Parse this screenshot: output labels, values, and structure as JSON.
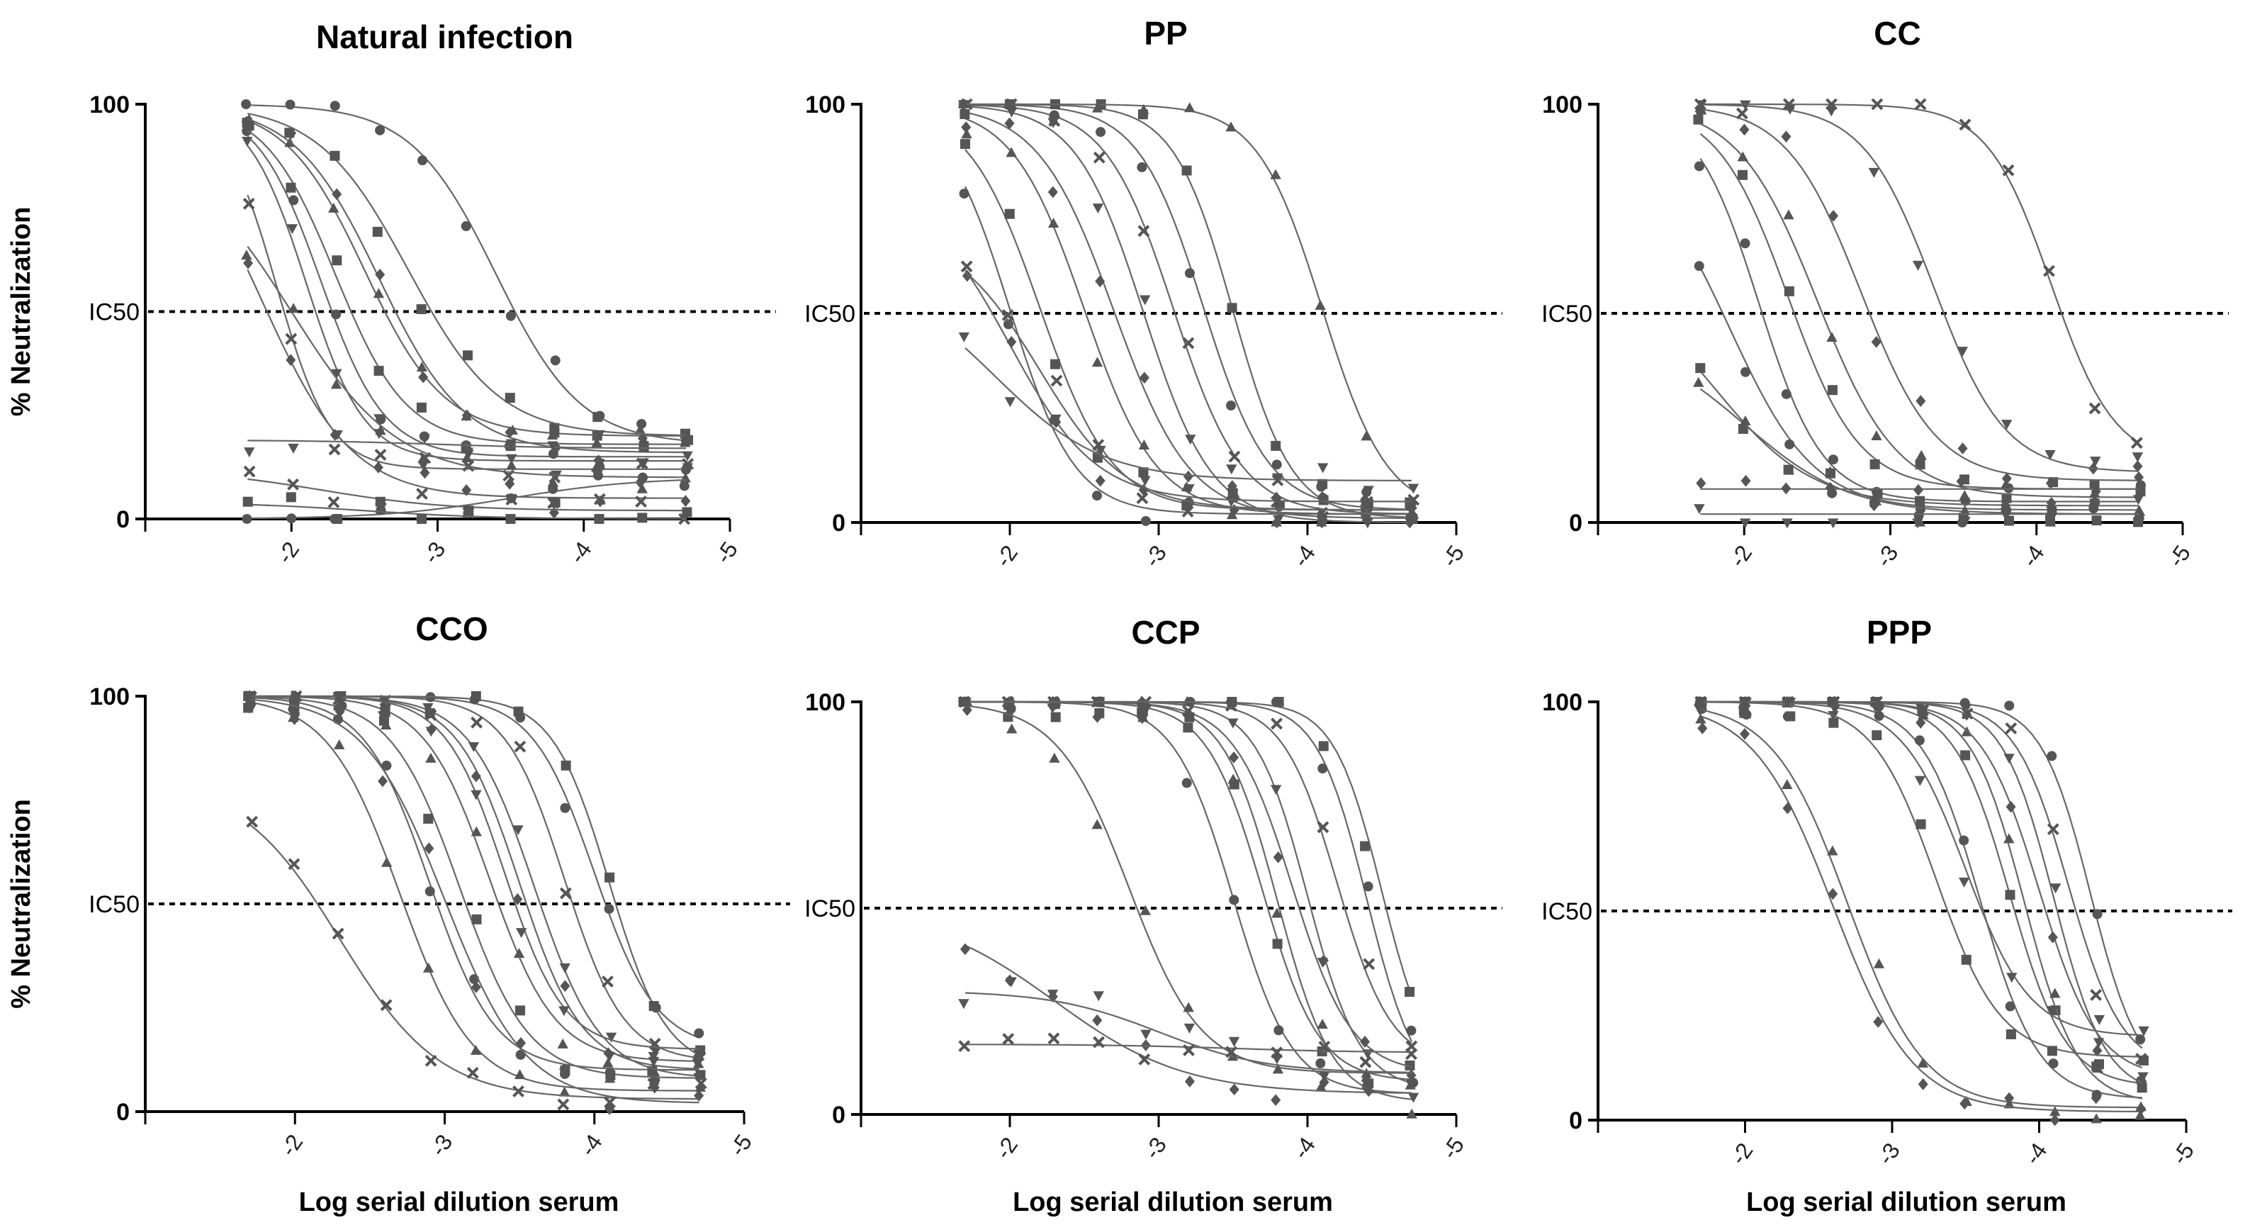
{
  "figure": {
    "y_axis_label": "% Neutralization",
    "x_axis_label": "Log serial dilution serum",
    "reference_label": "IC50",
    "marker_color": "#555555",
    "curve_color": "#666666",
    "axis_color": "#000000"
  },
  "chart_data": [
    {
      "type": "scatter",
      "title": "Natural infection",
      "xlabel": "",
      "ylabel": "% Neutralization",
      "xlim": [
        -1,
        -5
      ],
      "ylim": [
        0,
        100
      ],
      "xticks": [
        "-2",
        "-3",
        "-4",
        "-5"
      ],
      "yticks": [
        "0",
        "100"
      ],
      "reference_line": {
        "y": 50,
        "label": "IC50",
        "style": "dotted"
      },
      "x": [
        -1.7,
        -2.0,
        -2.3,
        -2.6,
        -2.9,
        -3.2,
        -3.5,
        -3.8,
        -4.1,
        -4.4,
        -4.7
      ],
      "curve_model": "four-parameter logistic (top, bottom, logIC50, slope)",
      "series": [
        {
          "name": "s1",
          "top": 100,
          "bottom": 15,
          "ic50": -2.2,
          "slope": 2.0
        },
        {
          "name": "s2",
          "top": 100,
          "bottom": 18,
          "ic50": -2.3,
          "slope": 1.8
        },
        {
          "name": "s3",
          "top": 100,
          "bottom": 20,
          "ic50": -2.5,
          "slope": 1.6
        },
        {
          "name": "s4",
          "top": 100,
          "bottom": 16,
          "ic50": -2.6,
          "slope": 1.5
        },
        {
          "name": "s5",
          "top": 100,
          "bottom": 14,
          "ic50": -2.1,
          "slope": 2.2
        },
        {
          "name": "s6",
          "top": 100,
          "bottom": 12,
          "ic50": -1.9,
          "slope": 2.4
        },
        {
          "name": "s7",
          "top": 100,
          "bottom": 18,
          "ic50": -3.4,
          "slope": 1.5
        },
        {
          "name": "s8",
          "top": 100,
          "bottom": 20,
          "ic50": -2.8,
          "slope": 1.4
        },
        {
          "name": "s9",
          "top": 90,
          "bottom": 10,
          "ic50": -2.0,
          "slope": 1.2
        },
        {
          "name": "s10",
          "top": 100,
          "bottom": 5,
          "ic50": -1.8,
          "slope": 1.4
        },
        {
          "name": "s11",
          "top": 19,
          "bottom": 17,
          "ic50": -3.0,
          "slope": 1.0
        },
        {
          "name": "s12",
          "top": 12,
          "bottom": 2,
          "ic50": -2.2,
          "slope": 1.0
        },
        {
          "name": "s13",
          "top": 0,
          "bottom": 10,
          "ic50": -3.5,
          "slope": 1.0
        },
        {
          "name": "s14",
          "top": 4,
          "bottom": 0,
          "ic50": -2.5,
          "slope": 1.0
        }
      ]
    },
    {
      "type": "scatter",
      "title": "PP",
      "xlabel": "",
      "ylabel": "",
      "xlim": [
        -1,
        -5
      ],
      "ylim": [
        0,
        100
      ],
      "xticks": [
        "-2",
        "-3",
        "-4",
        "-5"
      ],
      "yticks": [
        "0",
        "100"
      ],
      "reference_line": {
        "y": 50,
        "label": "IC50",
        "style": "dotted"
      },
      "x": [
        -1.7,
        -2.0,
        -2.3,
        -2.6,
        -2.9,
        -3.2,
        -3.5,
        -3.8,
        -4.1,
        -4.4,
        -4.7
      ],
      "curve_model": "four-parameter logistic (top, bottom, logIC50, slope)",
      "series": [
        {
          "name": "s1",
          "top": 100,
          "bottom": 2,
          "ic50": -2.0,
          "slope": 2.0
        },
        {
          "name": "s2",
          "top": 100,
          "bottom": 3,
          "ic50": -2.2,
          "slope": 1.8
        },
        {
          "name": "s3",
          "top": 100,
          "bottom": 2,
          "ic50": -2.5,
          "slope": 1.8
        },
        {
          "name": "s4",
          "top": 100,
          "bottom": 1,
          "ic50": -2.7,
          "slope": 1.7
        },
        {
          "name": "s5",
          "top": 100,
          "bottom": 0,
          "ic50": -2.9,
          "slope": 1.9
        },
        {
          "name": "s6",
          "top": 100,
          "bottom": 2,
          "ic50": -3.1,
          "slope": 1.9
        },
        {
          "name": "s7",
          "top": 100,
          "bottom": 3,
          "ic50": -3.3,
          "slope": 2.0
        },
        {
          "name": "s8",
          "top": 100,
          "bottom": 1,
          "ic50": -3.5,
          "slope": 2.2
        },
        {
          "name": "s9",
          "top": 100,
          "bottom": 2,
          "ic50": -4.1,
          "slope": 2.0
        },
        {
          "name": "s10",
          "top": 80,
          "bottom": 5,
          "ic50": -2.0,
          "slope": 1.5
        },
        {
          "name": "s11",
          "top": 60,
          "bottom": 10,
          "ic50": -1.9,
          "slope": 1.2
        },
        {
          "name": "s12",
          "top": 70,
          "bottom": 3,
          "ic50": -2.2,
          "slope": 1.5
        }
      ]
    },
    {
      "type": "scatter",
      "title": "CC",
      "xlabel": "",
      "ylabel": "",
      "xlim": [
        -1,
        -5
      ],
      "ylim": [
        0,
        100
      ],
      "xticks": [
        "-2",
        "-3",
        "-4",
        "-5"
      ],
      "yticks": [
        "0",
        "100"
      ],
      "reference_line": {
        "y": 50,
        "label": "IC50",
        "style": "dotted"
      },
      "x": [
        -1.7,
        -2.0,
        -2.3,
        -2.6,
        -2.9,
        -3.2,
        -3.5,
        -3.8,
        -4.1,
        -4.4,
        -4.7
      ],
      "curve_model": "four-parameter logistic (top, bottom, logIC50, slope)",
      "series": [
        {
          "name": "s1",
          "top": 100,
          "bottom": 5,
          "ic50": -2.1,
          "slope": 2.0
        },
        {
          "name": "s2",
          "top": 100,
          "bottom": 8,
          "ic50": -2.3,
          "slope": 1.8
        },
        {
          "name": "s3",
          "top": 100,
          "bottom": 6,
          "ic50": -2.5,
          "slope": 1.6
        },
        {
          "name": "s4",
          "top": 100,
          "bottom": 10,
          "ic50": -2.8,
          "slope": 1.7
        },
        {
          "name": "s5",
          "top": 100,
          "bottom": 12,
          "ic50": -3.3,
          "slope": 1.8
        },
        {
          "name": "s6",
          "top": 100,
          "bottom": 14,
          "ic50": -4.1,
          "slope": 2.0
        },
        {
          "name": "s7",
          "top": 90,
          "bottom": 3,
          "ic50": -1.9,
          "slope": 1.5
        },
        {
          "name": "s8",
          "top": 60,
          "bottom": 4,
          "ic50": -1.8,
          "slope": 1.3
        },
        {
          "name": "s9",
          "top": 45,
          "bottom": 2,
          "ic50": -2.0,
          "slope": 1.2
        },
        {
          "name": "s10",
          "top": 8,
          "bottom": 8,
          "ic50": -3.0,
          "slope": 1.0
        },
        {
          "name": "s11",
          "top": 2,
          "bottom": 2,
          "ic50": -3.0,
          "slope": 1.0
        }
      ]
    },
    {
      "type": "scatter",
      "title": "CCO",
      "xlabel": "Log serial dilution serum",
      "ylabel": "% Neutralization",
      "xlim": [
        -1,
        -5
      ],
      "ylim": [
        0,
        100
      ],
      "xticks": [
        "-2",
        "-3",
        "-4",
        "-5"
      ],
      "yticks": [
        "0",
        "100"
      ],
      "reference_line": {
        "y": 50,
        "label": "IC50",
        "style": "dotted"
      },
      "x": [
        -1.7,
        -2.0,
        -2.3,
        -2.6,
        -2.9,
        -3.2,
        -3.5,
        -3.8,
        -4.1,
        -4.4,
        -4.7
      ],
      "curve_model": "four-parameter logistic (top, bottom, logIC50, slope)",
      "series": [
        {
          "name": "s1",
          "top": 100,
          "bottom": 10,
          "ic50": -2.9,
          "slope": 2.0
        },
        {
          "name": "s2",
          "top": 100,
          "bottom": 8,
          "ic50": -3.1,
          "slope": 1.9
        },
        {
          "name": "s3",
          "top": 100,
          "bottom": 12,
          "ic50": -3.3,
          "slope": 2.0
        },
        {
          "name": "s4",
          "top": 100,
          "bottom": 10,
          "ic50": -3.5,
          "slope": 2.1
        },
        {
          "name": "s5",
          "top": 100,
          "bottom": 8,
          "ic50": -3.6,
          "slope": 2.0
        },
        {
          "name": "s6",
          "top": 100,
          "bottom": 12,
          "ic50": -3.8,
          "slope": 2.2
        },
        {
          "name": "s7",
          "top": 100,
          "bottom": 15,
          "ic50": -4.0,
          "slope": 2.1
        },
        {
          "name": "s8",
          "top": 100,
          "bottom": 10,
          "ic50": -4.1,
          "slope": 2.3
        },
        {
          "name": "s9",
          "top": 100,
          "bottom": 5,
          "ic50": -2.7,
          "slope": 1.8
        },
        {
          "name": "s10",
          "top": 100,
          "bottom": 2,
          "ic50": -3.0,
          "slope": 1.6
        },
        {
          "name": "s11",
          "top": 100,
          "bottom": 15,
          "ic50": -3.4,
          "slope": 2.2
        },
        {
          "name": "s12",
          "top": 80,
          "bottom": 3,
          "ic50": -2.3,
          "slope": 1.3
        }
      ]
    },
    {
      "type": "scatter",
      "title": "CCP",
      "xlabel": "Log serial dilution serum",
      "ylabel": "",
      "xlim": [
        -1,
        -5
      ],
      "ylim": [
        0,
        100
      ],
      "xticks": [
        "-2",
        "-3",
        "-4",
        "-5"
      ],
      "yticks": [
        "0",
        "100"
      ],
      "reference_line": {
        "y": 50,
        "label": "IC50",
        "style": "dotted"
      },
      "x": [
        -1.7,
        -2.0,
        -2.3,
        -2.6,
        -2.9,
        -3.2,
        -3.5,
        -3.8,
        -4.1,
        -4.4,
        -4.7
      ],
      "curve_model": "four-parameter logistic (top, bottom, logIC50, slope)",
      "series": [
        {
          "name": "s1",
          "top": 100,
          "bottom": 5,
          "ic50": -3.5,
          "slope": 2.2
        },
        {
          "name": "s2",
          "top": 100,
          "bottom": 8,
          "ic50": -3.7,
          "slope": 2.3
        },
        {
          "name": "s3",
          "top": 100,
          "bottom": 3,
          "ic50": -3.8,
          "slope": 2.4
        },
        {
          "name": "s4",
          "top": 100,
          "bottom": 10,
          "ic50": -3.9,
          "slope": 2.2
        },
        {
          "name": "s5",
          "top": 100,
          "bottom": 6,
          "ic50": -4.0,
          "slope": 2.5
        },
        {
          "name": "s6",
          "top": 100,
          "bottom": 12,
          "ic50": -4.2,
          "slope": 2.4
        },
        {
          "name": "s7",
          "top": 100,
          "bottom": 4,
          "ic50": -4.4,
          "slope": 2.6
        },
        {
          "name": "s8",
          "top": 100,
          "bottom": 8,
          "ic50": -4.5,
          "slope": 2.7
        },
        {
          "name": "s9",
          "top": 100,
          "bottom": 10,
          "ic50": -2.8,
          "slope": 1.8
        },
        {
          "name": "s10",
          "top": 50,
          "bottom": 5,
          "ic50": -2.3,
          "slope": 1.0
        },
        {
          "name": "s11",
          "top": 30,
          "bottom": 10,
          "ic50": -3.0,
          "slope": 1.2
        },
        {
          "name": "s12",
          "top": 17,
          "bottom": 15,
          "ic50": -3.5,
          "slope": 1.0
        }
      ]
    },
    {
      "type": "scatter",
      "title": "PPP",
      "xlabel": "Log serial dilution serum",
      "ylabel": "",
      "xlim": [
        -1,
        -5
      ],
      "ylim": [
        0,
        100
      ],
      "xticks": [
        "-2",
        "-3",
        "-4",
        "-5"
      ],
      "yticks": [
        "0",
        "100"
      ],
      "reference_line": {
        "y": 50,
        "label": "IC50",
        "style": "dotted"
      },
      "x": [
        -1.7,
        -2.0,
        -2.3,
        -2.6,
        -2.9,
        -3.2,
        -3.5,
        -3.8,
        -4.1,
        -4.4,
        -4.7
      ],
      "curve_model": "four-parameter logistic (top, bottom, logIC50, slope)",
      "series": [
        {
          "name": "s1",
          "top": 100,
          "bottom": 5,
          "ic50": -3.6,
          "slope": 2.2
        },
        {
          "name": "s2",
          "top": 100,
          "bottom": 8,
          "ic50": -3.8,
          "slope": 2.3
        },
        {
          "name": "s3",
          "top": 100,
          "bottom": 4,
          "ic50": -3.9,
          "slope": 2.4
        },
        {
          "name": "s4",
          "top": 100,
          "bottom": 10,
          "ic50": -4.0,
          "slope": 2.2
        },
        {
          "name": "s5",
          "top": 100,
          "bottom": 6,
          "ic50": -4.1,
          "slope": 2.5
        },
        {
          "name": "s6",
          "top": 100,
          "bottom": 12,
          "ic50": -4.2,
          "slope": 2.4
        },
        {
          "name": "s7",
          "top": 100,
          "bottom": 8,
          "ic50": -4.35,
          "slope": 2.6
        },
        {
          "name": "s8",
          "top": 100,
          "bottom": 15,
          "ic50": -3.3,
          "slope": 2.0
        },
        {
          "name": "s9",
          "top": 100,
          "bottom": 3,
          "ic50": -2.7,
          "slope": 1.7
        },
        {
          "name": "s10",
          "top": 100,
          "bottom": 2,
          "ic50": -2.6,
          "slope": 1.6
        },
        {
          "name": "s11",
          "top": 100,
          "bottom": 20,
          "ic50": -3.5,
          "slope": 2.0
        }
      ]
    }
  ]
}
